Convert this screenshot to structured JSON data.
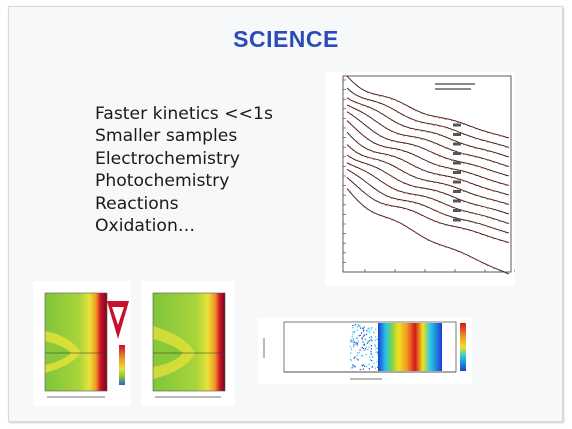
{
  "slide": {
    "title": "SCIENCE",
    "bullets": [
      "Faster kinetics <<1s",
      "Smaller samples",
      "Electrochemistry",
      "Photochemistry",
      "Reactions",
      "Oxidation…"
    ]
  },
  "figures": {
    "saxs_waterfall": {
      "curve_count": 13,
      "colors": {
        "line": "#1a1a1a",
        "fit": "#d9342b"
      }
    },
    "contour_maps": {
      "count": 2,
      "colors": {
        "green": "#7fc53a",
        "yellow": "#e8e23a",
        "red": "#c8102e"
      }
    },
    "spectrogram": {
      "colors": {
        "blue": "#1e3fd6",
        "cyan": "#25c7e6",
        "yellow": "#f2e21c",
        "red": "#d6181e"
      }
    }
  }
}
